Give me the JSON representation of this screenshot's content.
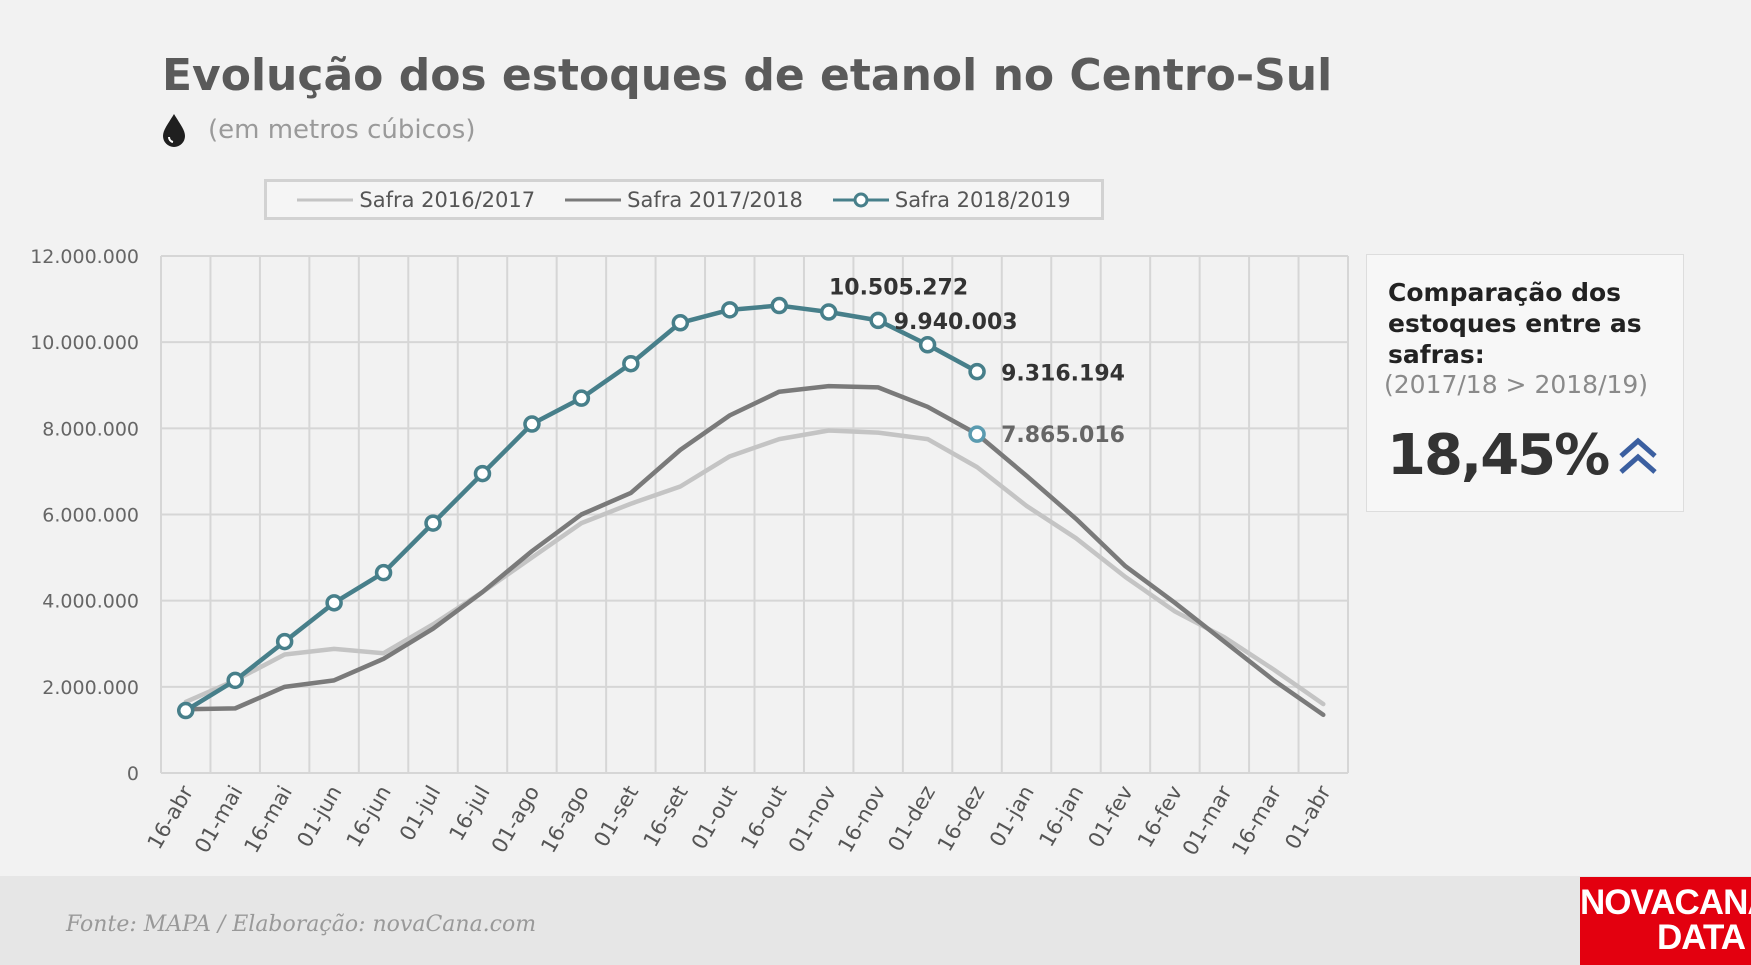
{
  "title": "Evolução dos estoques de etanol no Centro-Sul",
  "subtitle": "(em metros cúbicos)",
  "source": "Fonte: MAPA  / Elaboração: novaCana.com",
  "logo": {
    "line1": "NOVACANA",
    "line2": "DATA"
  },
  "side_box": {
    "title": "Comparação dos estoques entre as safras:",
    "subtitle": "(2017/18 > 2018/19)",
    "value": "18,45%",
    "icon": "double-chevron-up-icon",
    "icon_color": "#3b5fa0"
  },
  "colors": {
    "safra_2016_2017": "#c4c4c4",
    "safra_2017_2018": "#7a7a7a",
    "safra_2018_2019": "#477f8a",
    "marker_last_2017_2018": "#5a9bb0"
  },
  "chart_data": {
    "type": "line",
    "categories": [
      "16-abr",
      "01-mai",
      "16-mai",
      "01-jun",
      "16-jun",
      "01-jul",
      "16-jul",
      "01-ago",
      "16-ago",
      "01-set",
      "16-set",
      "01-out",
      "16-out",
      "01-nov",
      "16-nov",
      "01-dez",
      "16-dez",
      "01-jan",
      "16-jan",
      "01-fev",
      "16-fev",
      "01-mar",
      "16-mar",
      "01-abr"
    ],
    "ylim": [
      0,
      12000000
    ],
    "yticks": [
      "0",
      "2.000.000",
      "4.000.000",
      "6.000.000",
      "8.000.000",
      "10.000.000",
      "12.000.000"
    ],
    "grid": true,
    "legend_position": "top",
    "series": [
      {
        "name": "Safra 2016/2017",
        "values": [
          1650000,
          2150000,
          2750000,
          2880000,
          2780000,
          3450000,
          4200000,
          5000000,
          5800000,
          6250000,
          6650000,
          7350000,
          7750000,
          7950000,
          7900000,
          7750000,
          7100000,
          6200000,
          5450000,
          4550000,
          3750000,
          3150000,
          2400000,
          1600000
        ]
      },
      {
        "name": "Safra 2017/2018",
        "values": [
          1480000,
          1500000,
          2000000,
          2150000,
          2650000,
          3350000,
          4200000,
          5150000,
          6000000,
          6500000,
          7500000,
          8300000,
          8850000,
          8980000,
          8950000,
          8500000,
          7865016,
          6900000,
          5900000,
          4800000,
          3950000,
          3050000,
          2150000,
          1350000
        ]
      },
      {
        "name": "Safra 2018/2019",
        "values": [
          1450000,
          2150000,
          3050000,
          3950000,
          4650000,
          5800000,
          6950000,
          8100000,
          8700000,
          9500000,
          10450000,
          10750000,
          10850000,
          10700000,
          10505272,
          9940003,
          9316194,
          null,
          null,
          null,
          null,
          null,
          null,
          null
        ]
      }
    ],
    "annotations": [
      {
        "text": "10.505.272",
        "series": "Safra 2018/2019",
        "category": "16-nov"
      },
      {
        "text": "9.940.003",
        "series": "Safra 2018/2019",
        "category": "01-dez"
      },
      {
        "text": "9.316.194",
        "series": "Safra 2018/2019",
        "category": "16-dez"
      },
      {
        "text": "7.865.016",
        "series": "Safra 2017/2018",
        "category": "16-dez"
      }
    ]
  }
}
